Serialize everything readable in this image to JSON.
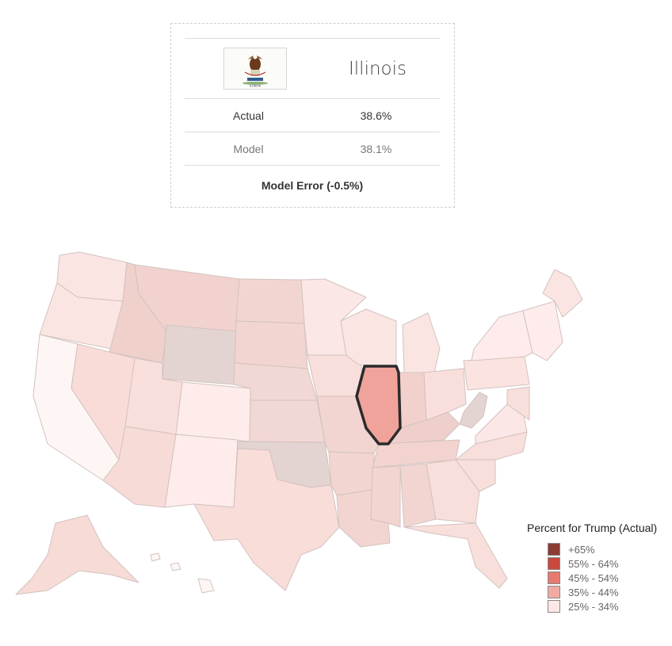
{
  "card": {
    "state": "Illinois",
    "flag_icon": "illinois-flag-icon",
    "flag_caption": "ILLINOIS",
    "actual_label": "Actual",
    "actual_value": "38.6%",
    "model_label": "Model",
    "model_value": "38.1%",
    "error_text": "Model Error (-0.5%)"
  },
  "map": {
    "selected_state": "IL",
    "selected_color": "#efa39b",
    "states": [
      {
        "code": "WA",
        "color": "#fbe5e2"
      },
      {
        "code": "OR",
        "color": "#fbe5e2"
      },
      {
        "code": "CA",
        "color": "#fef6f5"
      },
      {
        "code": "NV",
        "color": "#f9dcd8"
      },
      {
        "code": "ID",
        "color": "#efd0cb"
      },
      {
        "code": "MT",
        "color": "#f2d2ce"
      },
      {
        "code": "WY",
        "color": "#e4d4d1"
      },
      {
        "code": "UT",
        "color": "#f9dfdb"
      },
      {
        "code": "CO",
        "color": "#fdecea"
      },
      {
        "code": "AZ",
        "color": "#f7dbd7"
      },
      {
        "code": "NM",
        "color": "#fdeceb"
      },
      {
        "code": "ND",
        "color": "#f2d5d1"
      },
      {
        "code": "SD",
        "color": "#f2d5d1"
      },
      {
        "code": "NE",
        "color": "#f2d8d4"
      },
      {
        "code": "KS",
        "color": "#f2d8d4"
      },
      {
        "code": "OK",
        "color": "#e4d4d1"
      },
      {
        "code": "TX",
        "color": "#f9ddd9"
      },
      {
        "code": "MN",
        "color": "#fbe7e5"
      },
      {
        "code": "IA",
        "color": "#f9dfdb"
      },
      {
        "code": "MO",
        "color": "#f2d5d1"
      },
      {
        "code": "AR",
        "color": "#f2d5d1"
      },
      {
        "code": "LA",
        "color": "#f2d5d1"
      },
      {
        "code": "WI",
        "color": "#fbe5e2"
      },
      {
        "code": "MI",
        "color": "#fbe5e2"
      },
      {
        "code": "IL",
        "color": "#efa39b"
      },
      {
        "code": "IN",
        "color": "#f2d0cc"
      },
      {
        "code": "KY",
        "color": "#efcfcb"
      },
      {
        "code": "TN",
        "color": "#f2d3cf"
      },
      {
        "code": "MS",
        "color": "#f2d5d1"
      },
      {
        "code": "AL",
        "color": "#f2d5d1"
      },
      {
        "code": "OH",
        "color": "#f9dfdb"
      },
      {
        "code": "WV",
        "color": "#e4d4d1"
      },
      {
        "code": "GA",
        "color": "#f9dfdb"
      },
      {
        "code": "FL",
        "color": "#f9dfdb"
      },
      {
        "code": "SC",
        "color": "#f9dfdb"
      },
      {
        "code": "NC",
        "color": "#f9dfdb"
      },
      {
        "code": "VA",
        "color": "#fbe7e5"
      },
      {
        "code": "PA",
        "color": "#fbe3e0"
      },
      {
        "code": "NY",
        "color": "#fdeceb"
      },
      {
        "code": "NE-region",
        "color": "#fdeceb"
      },
      {
        "code": "ME",
        "color": "#fbe5e2"
      },
      {
        "code": "AK",
        "color": "#f7dbd7"
      },
      {
        "code": "HI",
        "color": "#fef6f5"
      }
    ]
  },
  "legend": {
    "title": "Percent for Trump (Actual)",
    "items": [
      {
        "label": "+65%",
        "color": "#8a3c35"
      },
      {
        "label": "55% - 64%",
        "color": "#c9493e"
      },
      {
        "label": "45% - 54%",
        "color": "#e77a70"
      },
      {
        "label": "35% - 44%",
        "color": "#f1aaa3"
      },
      {
        "label": "25% - 34%",
        "color": "#fbe7e5"
      }
    ]
  }
}
